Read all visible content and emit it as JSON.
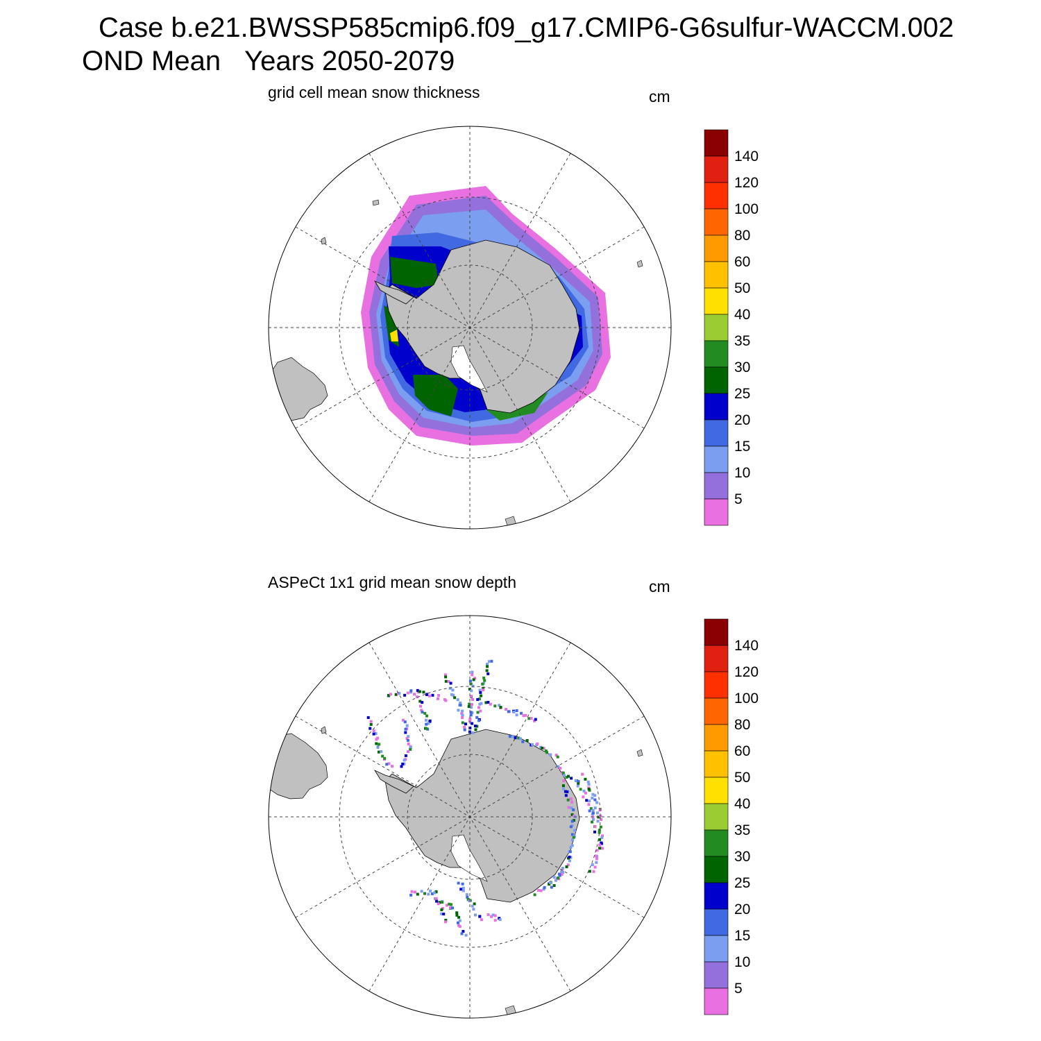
{
  "header": {
    "case_line": "Case b.e21.BWSSP585cmip6.f09_g17.CMIP6-G6sulfur-WACCM.002",
    "season": "OND Mean",
    "years": "Years 2050-2079"
  },
  "panels": [
    {
      "title": "grid cell mean snow thickness",
      "units": "cm",
      "field": "model snow thickness, Antarctic polar stereographic"
    },
    {
      "title": "ASPeCt 1x1 grid mean snow depth",
      "units": "cm",
      "field": "ship-based observations along cruise tracks"
    }
  ],
  "colorbar": {
    "labels": [
      "5",
      "10",
      "15",
      "20",
      "25",
      "30",
      "35",
      "40",
      "50",
      "60",
      "80",
      "100",
      "120",
      "140"
    ],
    "colors": [
      "#e870e0",
      "#9370db",
      "#7b9ef0",
      "#4169e1",
      "#0000cd",
      "#006400",
      "#228b22",
      "#9acd32",
      "#ffe000",
      "#ffc000",
      "#ff9a00",
      "#ff6600",
      "#ff3000",
      "#e02010",
      "#8b0000"
    ]
  },
  "map_colors": {
    "land": "#c0c0c0",
    "ocean": "#ffffff"
  }
}
